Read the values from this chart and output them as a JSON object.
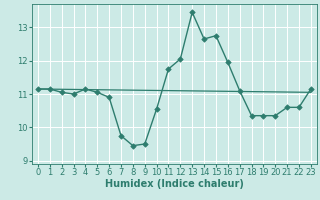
{
  "x": [
    0,
    1,
    2,
    3,
    4,
    5,
    6,
    7,
    8,
    9,
    10,
    11,
    12,
    13,
    14,
    15,
    16,
    17,
    18,
    19,
    20,
    21,
    22,
    23
  ],
  "y": [
    11.15,
    11.15,
    11.05,
    11.0,
    11.15,
    11.05,
    10.9,
    9.75,
    9.45,
    9.5,
    10.55,
    11.75,
    12.05,
    13.45,
    12.65,
    12.75,
    11.95,
    11.1,
    10.35,
    10.35,
    10.35,
    10.6,
    10.6,
    11.15
  ],
  "trend_x": [
    0,
    23
  ],
  "trend_y": [
    11.15,
    11.05
  ],
  "line_color": "#2e7d6e",
  "bg_color": "#cceae6",
  "grid_color": "#b0d8d4",
  "xlabel": "Humidex (Indice chaleur)",
  "ylim": [
    8.9,
    13.7
  ],
  "xlim": [
    -0.5,
    23.5
  ],
  "yticks": [
    9,
    10,
    11,
    12,
    13
  ],
  "xticks": [
    0,
    1,
    2,
    3,
    4,
    5,
    6,
    7,
    8,
    9,
    10,
    11,
    12,
    13,
    14,
    15,
    16,
    17,
    18,
    19,
    20,
    21,
    22,
    23
  ],
  "marker": "D",
  "markersize": 2.8,
  "linewidth": 1.0,
  "trend_linewidth": 0.9,
  "fontsize_label": 7,
  "fontsize_tick": 6
}
